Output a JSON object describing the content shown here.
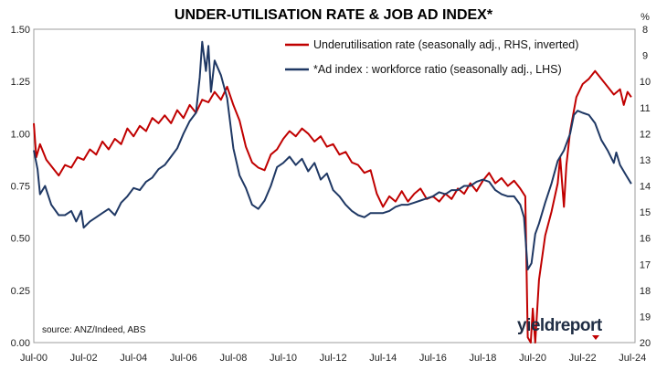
{
  "chart_data": {
    "type": "line",
    "title": "UNDER-UTILISATION RATE & JOB AD INDEX*",
    "left_axis": {
      "min": 0,
      "max": 1.5,
      "ticks": [
        "1.50",
        "1.25",
        "1.00",
        "0.75",
        "0.50",
        "0.25",
        "0.00"
      ]
    },
    "right_axis": {
      "unit": "%",
      "inverted": true,
      "min": 8,
      "max": 20,
      "ticks": [
        "8",
        "9",
        "10",
        "11",
        "12",
        "13",
        "14",
        "15",
        "16",
        "17",
        "18",
        "19",
        "20"
      ]
    },
    "x_axis": {
      "start": 2000.5,
      "end": 2024.6,
      "ticks": [
        {
          "label": "Jul-00",
          "t": 2000.5
        },
        {
          "label": "Jul-02",
          "t": 2002.5
        },
        {
          "label": "Jul-04",
          "t": 2004.5
        },
        {
          "label": "Jul-06",
          "t": 2006.5
        },
        {
          "label": "Jul-08",
          "t": 2008.5
        },
        {
          "label": "Jul-10",
          "t": 2010.5
        },
        {
          "label": "Jul-12",
          "t": 2012.5
        },
        {
          "label": "Jul-14",
          "t": 2014.5
        },
        {
          "label": "Jul-16",
          "t": 2016.5
        },
        {
          "label": "Jul-18",
          "t": 2018.5
        },
        {
          "label": "Jul-20",
          "t": 2020.5
        },
        {
          "label": "Jul-22",
          "t": 2022.5
        },
        {
          "label": "Jul-24",
          "t": 2024.5
        }
      ]
    },
    "grid": false,
    "legend_position": "top-right",
    "series": [
      {
        "name": "Underutilisation rate (seasonally adj., RHS, inverted)",
        "axis": "right",
        "color": "#c00000",
        "points": [
          [
            2000.5,
            11.6
          ],
          [
            2000.6,
            12.9
          ],
          [
            2000.75,
            12.4
          ],
          [
            2001.0,
            13.0
          ],
          [
            2001.25,
            13.3
          ],
          [
            2001.5,
            13.6
          ],
          [
            2001.75,
            13.2
          ],
          [
            2002.0,
            13.3
          ],
          [
            2002.25,
            12.9
          ],
          [
            2002.5,
            13.0
          ],
          [
            2002.75,
            12.6
          ],
          [
            2003.0,
            12.8
          ],
          [
            2003.25,
            12.3
          ],
          [
            2003.5,
            12.6
          ],
          [
            2003.75,
            12.2
          ],
          [
            2004.0,
            12.4
          ],
          [
            2004.25,
            11.8
          ],
          [
            2004.5,
            12.1
          ],
          [
            2004.75,
            11.7
          ],
          [
            2005.0,
            11.9
          ],
          [
            2005.25,
            11.4
          ],
          [
            2005.5,
            11.6
          ],
          [
            2005.75,
            11.3
          ],
          [
            2006.0,
            11.6
          ],
          [
            2006.25,
            11.1
          ],
          [
            2006.5,
            11.4
          ],
          [
            2006.75,
            10.9
          ],
          [
            2007.0,
            11.2
          ],
          [
            2007.25,
            10.7
          ],
          [
            2007.5,
            10.8
          ],
          [
            2007.75,
            10.4
          ],
          [
            2008.0,
            10.7
          ],
          [
            2008.25,
            10.2
          ],
          [
            2008.5,
            10.9
          ],
          [
            2008.75,
            11.5
          ],
          [
            2009.0,
            12.5
          ],
          [
            2009.25,
            13.1
          ],
          [
            2009.5,
            13.3
          ],
          [
            2009.75,
            13.4
          ],
          [
            2010.0,
            12.8
          ],
          [
            2010.25,
            12.6
          ],
          [
            2010.5,
            12.2
          ],
          [
            2010.75,
            11.9
          ],
          [
            2011.0,
            12.1
          ],
          [
            2011.25,
            11.8
          ],
          [
            2011.5,
            12.0
          ],
          [
            2011.75,
            12.3
          ],
          [
            2012.0,
            12.1
          ],
          [
            2012.25,
            12.5
          ],
          [
            2012.5,
            12.4
          ],
          [
            2012.75,
            12.8
          ],
          [
            2013.0,
            12.7
          ],
          [
            2013.25,
            13.1
          ],
          [
            2013.5,
            13.2
          ],
          [
            2013.75,
            13.5
          ],
          [
            2014.0,
            13.4
          ],
          [
            2014.25,
            14.3
          ],
          [
            2014.5,
            14.8
          ],
          [
            2014.75,
            14.4
          ],
          [
            2015.0,
            14.6
          ],
          [
            2015.25,
            14.2
          ],
          [
            2015.5,
            14.6
          ],
          [
            2015.75,
            14.3
          ],
          [
            2016.0,
            14.1
          ],
          [
            2016.25,
            14.5
          ],
          [
            2016.5,
            14.4
          ],
          [
            2016.75,
            14.6
          ],
          [
            2017.0,
            14.3
          ],
          [
            2017.25,
            14.5
          ],
          [
            2017.5,
            14.1
          ],
          [
            2017.75,
            14.3
          ],
          [
            2018.0,
            13.9
          ],
          [
            2018.25,
            14.2
          ],
          [
            2018.5,
            13.8
          ],
          [
            2018.75,
            13.5
          ],
          [
            2019.0,
            13.9
          ],
          [
            2019.25,
            13.7
          ],
          [
            2019.5,
            14.0
          ],
          [
            2019.75,
            13.8
          ],
          [
            2020.0,
            14.1
          ],
          [
            2020.2,
            14.4
          ],
          [
            2020.3,
            19.8
          ],
          [
            2020.42,
            20.0
          ],
          [
            2020.5,
            18.7
          ],
          [
            2020.6,
            20.0
          ],
          [
            2020.75,
            17.6
          ],
          [
            2021.0,
            15.9
          ],
          [
            2021.25,
            15.0
          ],
          [
            2021.5,
            13.9
          ],
          [
            2021.6,
            12.9
          ],
          [
            2021.67,
            13.8
          ],
          [
            2021.75,
            14.8
          ],
          [
            2021.85,
            13.2
          ],
          [
            2022.0,
            11.9
          ],
          [
            2022.25,
            10.6
          ],
          [
            2022.5,
            10.1
          ],
          [
            2022.75,
            9.9
          ],
          [
            2023.0,
            9.6
          ],
          [
            2023.25,
            9.9
          ],
          [
            2023.5,
            10.2
          ],
          [
            2023.75,
            10.5
          ],
          [
            2024.0,
            10.3
          ],
          [
            2024.15,
            10.9
          ],
          [
            2024.3,
            10.4
          ],
          [
            2024.45,
            10.6
          ]
        ]
      },
      {
        "name": "*Ad index : workforce ratio (seasonally adj., LHS)",
        "axis": "left",
        "color": "#1f3864",
        "points": [
          [
            2000.5,
            0.92
          ],
          [
            2000.65,
            0.83
          ],
          [
            2000.75,
            0.71
          ],
          [
            2000.95,
            0.75
          ],
          [
            2001.2,
            0.66
          ],
          [
            2001.5,
            0.61
          ],
          [
            2001.75,
            0.61
          ],
          [
            2002.0,
            0.63
          ],
          [
            2002.2,
            0.58
          ],
          [
            2002.4,
            0.63
          ],
          [
            2002.5,
            0.55
          ],
          [
            2002.75,
            0.58
          ],
          [
            2003.0,
            0.6
          ],
          [
            2003.25,
            0.62
          ],
          [
            2003.5,
            0.64
          ],
          [
            2003.75,
            0.61
          ],
          [
            2004.0,
            0.67
          ],
          [
            2004.25,
            0.7
          ],
          [
            2004.5,
            0.74
          ],
          [
            2004.75,
            0.73
          ],
          [
            2005.0,
            0.77
          ],
          [
            2005.25,
            0.79
          ],
          [
            2005.5,
            0.83
          ],
          [
            2005.75,
            0.85
          ],
          [
            2006.0,
            0.89
          ],
          [
            2006.25,
            0.93
          ],
          [
            2006.5,
            1.0
          ],
          [
            2006.75,
            1.06
          ],
          [
            2007.0,
            1.1
          ],
          [
            2007.15,
            1.27
          ],
          [
            2007.25,
            1.44
          ],
          [
            2007.4,
            1.3
          ],
          [
            2007.5,
            1.42
          ],
          [
            2007.6,
            1.2
          ],
          [
            2007.75,
            1.35
          ],
          [
            2008.0,
            1.28
          ],
          [
            2008.25,
            1.17
          ],
          [
            2008.5,
            0.93
          ],
          [
            2008.75,
            0.8
          ],
          [
            2009.0,
            0.74
          ],
          [
            2009.25,
            0.66
          ],
          [
            2009.5,
            0.64
          ],
          [
            2009.75,
            0.68
          ],
          [
            2010.0,
            0.75
          ],
          [
            2010.25,
            0.84
          ],
          [
            2010.5,
            0.86
          ],
          [
            2010.75,
            0.89
          ],
          [
            2011.0,
            0.85
          ],
          [
            2011.25,
            0.88
          ],
          [
            2011.5,
            0.82
          ],
          [
            2011.75,
            0.86
          ],
          [
            2012.0,
            0.78
          ],
          [
            2012.25,
            0.81
          ],
          [
            2012.5,
            0.73
          ],
          [
            2012.75,
            0.7
          ],
          [
            2013.0,
            0.66
          ],
          [
            2013.25,
            0.63
          ],
          [
            2013.5,
            0.61
          ],
          [
            2013.75,
            0.6
          ],
          [
            2014.0,
            0.62
          ],
          [
            2014.25,
            0.62
          ],
          [
            2014.5,
            0.62
          ],
          [
            2014.75,
            0.63
          ],
          [
            2015.0,
            0.65
          ],
          [
            2015.25,
            0.66
          ],
          [
            2015.5,
            0.66
          ],
          [
            2015.75,
            0.67
          ],
          [
            2016.0,
            0.68
          ],
          [
            2016.25,
            0.69
          ],
          [
            2016.5,
            0.7
          ],
          [
            2016.75,
            0.72
          ],
          [
            2017.0,
            0.71
          ],
          [
            2017.25,
            0.73
          ],
          [
            2017.5,
            0.73
          ],
          [
            2017.75,
            0.75
          ],
          [
            2018.0,
            0.75
          ],
          [
            2018.25,
            0.77
          ],
          [
            2018.5,
            0.78
          ],
          [
            2018.75,
            0.77
          ],
          [
            2019.0,
            0.73
          ],
          [
            2019.25,
            0.71
          ],
          [
            2019.5,
            0.7
          ],
          [
            2019.75,
            0.7
          ],
          [
            2020.0,
            0.66
          ],
          [
            2020.15,
            0.6
          ],
          [
            2020.3,
            0.35
          ],
          [
            2020.45,
            0.38
          ],
          [
            2020.6,
            0.52
          ],
          [
            2020.75,
            0.57
          ],
          [
            2021.0,
            0.67
          ],
          [
            2021.25,
            0.76
          ],
          [
            2021.5,
            0.87
          ],
          [
            2021.75,
            0.92
          ],
          [
            2022.0,
            1.0
          ],
          [
            2022.15,
            1.09
          ],
          [
            2022.3,
            1.11
          ],
          [
            2022.5,
            1.1
          ],
          [
            2022.75,
            1.09
          ],
          [
            2023.0,
            1.05
          ],
          [
            2023.25,
            0.97
          ],
          [
            2023.5,
            0.92
          ],
          [
            2023.75,
            0.86
          ],
          [
            2023.85,
            0.91
          ],
          [
            2024.0,
            0.85
          ],
          [
            2024.25,
            0.8
          ],
          [
            2024.45,
            0.76
          ]
        ]
      }
    ],
    "annotations": [
      "source: ANZ/Indeed, ABS"
    ]
  },
  "branding": {
    "brand_main": "yield",
    "brand_suffix": "report",
    "colors": {
      "dark": "#1f2d44",
      "red": "#c00000"
    }
  }
}
